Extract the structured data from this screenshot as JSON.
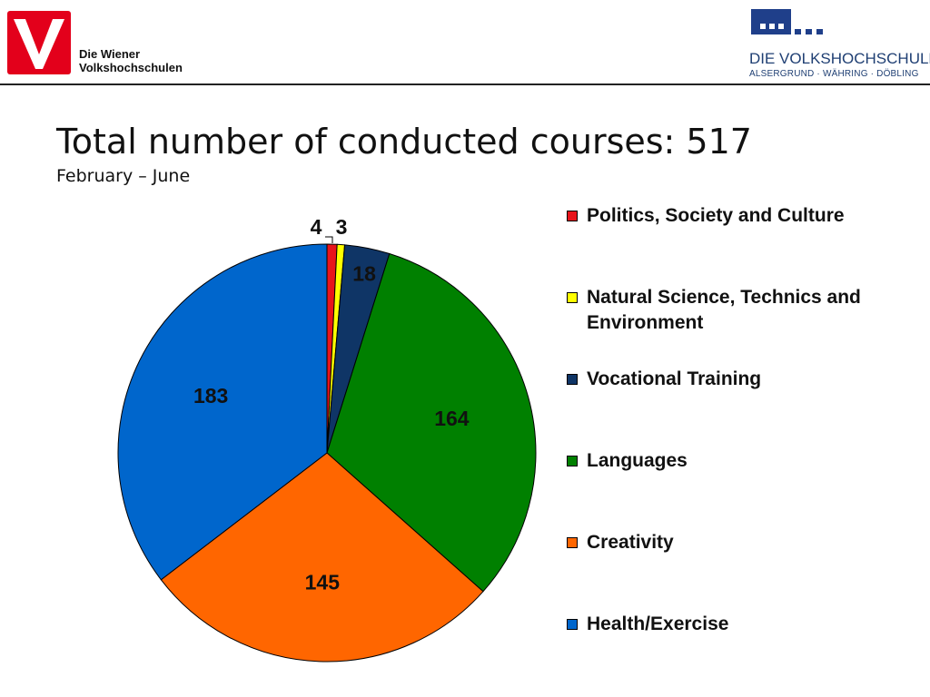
{
  "header": {
    "left_logo": {
      "line1": "Die Wiener",
      "line2": "Volkshochschulen",
      "mark_color": "#e3001b"
    },
    "right_logo": {
      "name": "DIE VOLKSHOCHSCHULE",
      "districts": "ALSERGRUND · WÄHRING · DÖBLING",
      "mark_color": "#1f3f8a"
    }
  },
  "slide": {
    "title": "Total number of conducted courses: 517",
    "subtitle": "February – June"
  },
  "chart_data": {
    "type": "pie",
    "title": "Total number of conducted courses: 517",
    "subtitle": "February – June",
    "legend_position": "right",
    "start_angle": "12 o'clock, clockwise",
    "series": [
      {
        "name": "Politics, Society and Culture",
        "value": 4,
        "color": "#e8141b"
      },
      {
        "name": "Natural Science, Technics and Environment",
        "value": 3,
        "color": "#ffff00"
      },
      {
        "name": "Vocational Training",
        "value": 18,
        "color": "#0f3566"
      },
      {
        "name": "Languages",
        "value": 164,
        "color": "#008000"
      },
      {
        "name": "Creativity",
        "value": 145,
        "color": "#ff6600"
      },
      {
        "name": "Health/Exercise",
        "value": 183,
        "color": "#0066cc"
      }
    ]
  }
}
